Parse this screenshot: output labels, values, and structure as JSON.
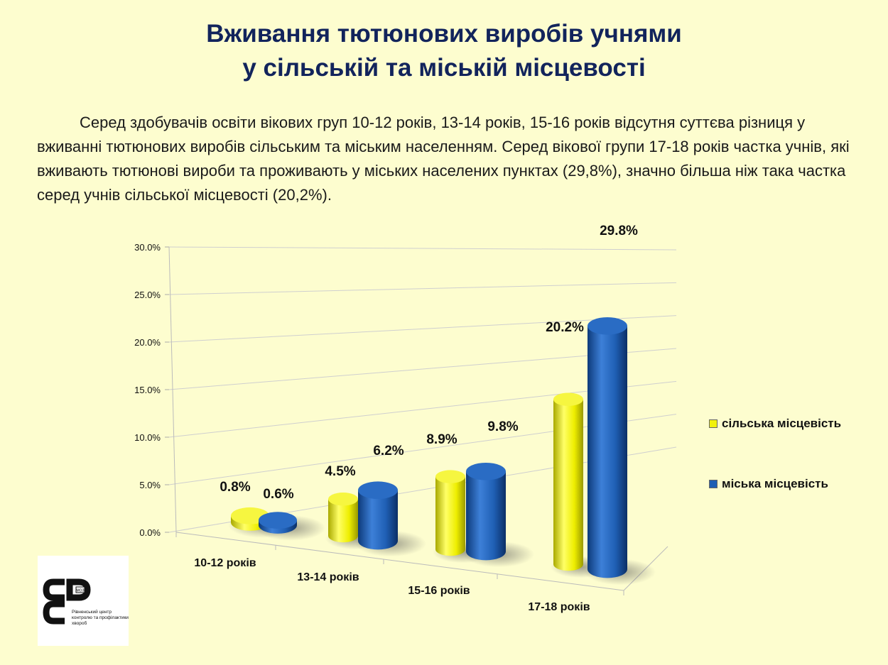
{
  "title": {
    "line1": "Вживання тютюнових виробів учнями",
    "line2": "у сільській та міській місцевості"
  },
  "paragraph": "Серед здобувачів освіти вікових груп 10-12 років, 13-14 років, 15-16 років відсутня суттєва різниця  у вживанні тютюнових виробів сільським та міським населенням. Серед вікової групи 17-18 років частка учнів, які вживають тютюнові вироби та проживають у міських населених пунктах  (29,8%), значно більша ніж така частка серед учнів сільської місцевості (20,2%).",
  "chart_data": {
    "type": "bar",
    "categories": [
      "10-12 років",
      "13-14 років",
      "15-16 років",
      "17-18 років"
    ],
    "series": [
      {
        "name": "сільська місцевість",
        "color": "#f2f20c",
        "values": [
          0.8,
          4.5,
          8.9,
          20.2
        ],
        "labels": [
          "0.8%",
          "4.5%",
          "8.9%",
          "20.2%"
        ]
      },
      {
        "name": "міська місцевість",
        "color": "#1f5fb4",
        "values": [
          0.6,
          6.2,
          9.8,
          29.8
        ],
        "labels": [
          "0.6%",
          "6.2%",
          "9.8%",
          "29.8%"
        ]
      }
    ],
    "y_ticks": [
      "0.0%",
      "5.0%",
      "10.0%",
      "15.0%",
      "20.0%",
      "25.0%",
      "30.0%"
    ],
    "ylim": [
      0,
      30
    ],
    "grid": true,
    "legend_position": "right",
    "style": "3d-cylinder"
  },
  "legend": {
    "items": [
      {
        "label": "сільська місцевість",
        "color": "#f2f20c"
      },
      {
        "label": "міська місцевість",
        "color": "#1f5fb4"
      }
    ]
  },
  "logo": {
    "text": "Рівненський центр контролю та профілактики хвороб",
    "badge": "МОЗ"
  }
}
